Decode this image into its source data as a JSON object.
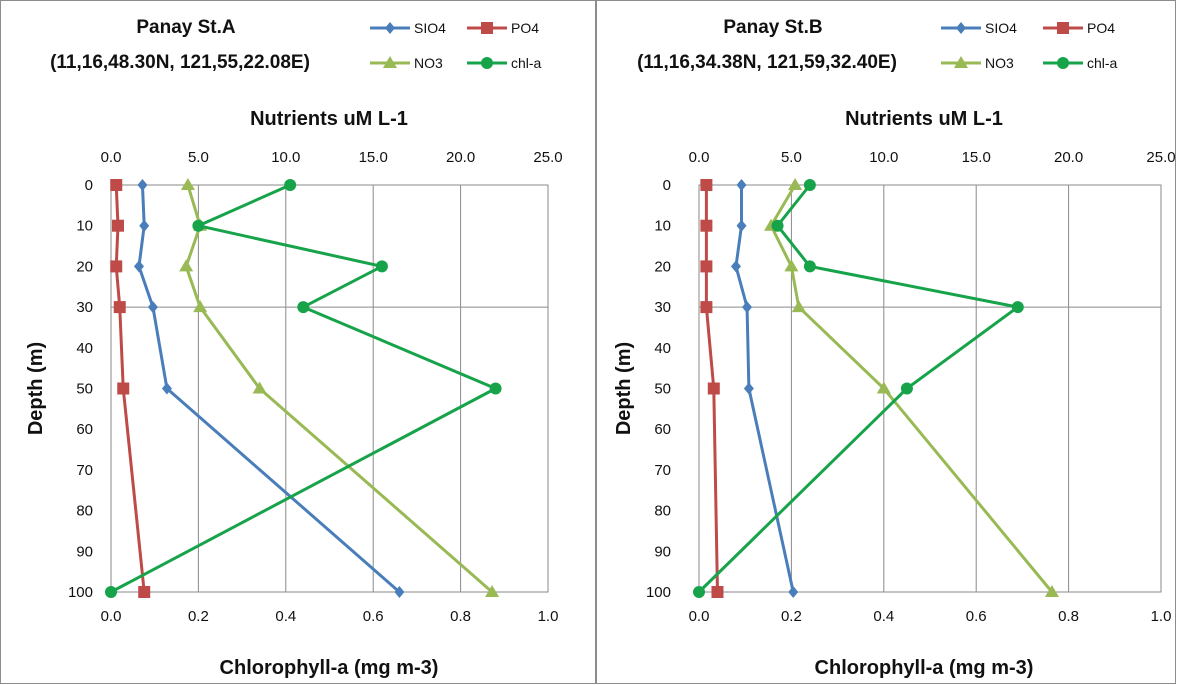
{
  "series_colors": {
    "SIO4": "#4a7ebb",
    "PO4": "#be4b48",
    "NO3": "#98b954",
    "chl-a": "#17a34a"
  },
  "chart_data": [
    {
      "type": "line",
      "title": "Panay St.A",
      "subtitle": "(11,16,48.30N, 121,55,22.08E)",
      "top_axis_label": "Nutrients  uM L-1",
      "bottom_axis_label": "Chlorophyll-a (mg m-3)",
      "ylabel": "Depth (m)",
      "top_ticks": [
        "0.0",
        "5.0",
        "10.0",
        "15.0",
        "20.0",
        "25.0"
      ],
      "bottom_ticks": [
        "0.0",
        "0.2",
        "0.4",
        "0.6",
        "0.8",
        "1.0"
      ],
      "y_ticks": [
        "0",
        "10",
        "20",
        "30",
        "40",
        "50",
        "60",
        "70",
        "80",
        "90",
        "100"
      ],
      "nutrient_xlim": [
        0,
        25
      ],
      "chl_xlim": [
        0,
        1
      ],
      "ylim": [
        0,
        100
      ],
      "y_inverted": true,
      "grid": "vertical lines at major ticks plus horizontal line at depth 30",
      "legend_position": "top-right",
      "depth": [
        0,
        10,
        20,
        30,
        50,
        100
      ],
      "series": [
        {
          "name": "SIO4",
          "axis": "top",
          "marker": "diamond",
          "values": [
            1.8,
            1.9,
            1.6,
            2.4,
            3.2,
            16.5
          ]
        },
        {
          "name": "PO4",
          "axis": "top",
          "marker": "square",
          "values": [
            0.3,
            0.4,
            0.3,
            0.5,
            0.7,
            1.9
          ]
        },
        {
          "name": "NO3",
          "axis": "top",
          "marker": "triangle",
          "values": [
            4.4,
            5.1,
            4.3,
            5.1,
            8.5,
            21.8
          ]
        },
        {
          "name": "chl-a",
          "axis": "bottom",
          "marker": "circle",
          "values": [
            0.41,
            0.2,
            0.62,
            0.44,
            0.88,
            0.0
          ]
        }
      ]
    },
    {
      "type": "line",
      "title": "Panay St.B",
      "subtitle": "(11,16,34.38N, 121,59,32.40E)",
      "top_axis_label": "Nutrients  uM L-1",
      "bottom_axis_label": "Chlorophyll-a (mg m-3)",
      "ylabel": "Depth (m)",
      "top_ticks": [
        "0.0",
        "5.0",
        "10.0",
        "15.0",
        "20.0",
        "25.0"
      ],
      "bottom_ticks": [
        "0.0",
        "0.2",
        "0.4",
        "0.6",
        "0.8",
        "1.0"
      ],
      "y_ticks": [
        "0",
        "10",
        "20",
        "30",
        "40",
        "50",
        "60",
        "70",
        "80",
        "90",
        "100"
      ],
      "nutrient_xlim": [
        0,
        25
      ],
      "chl_xlim": [
        0,
        1
      ],
      "ylim": [
        0,
        100
      ],
      "y_inverted": true,
      "grid": "vertical lines at major ticks plus horizontal line at depth 30",
      "legend_position": "top-right",
      "depth": [
        0,
        10,
        20,
        30,
        50,
        100
      ],
      "series": [
        {
          "name": "SIO4",
          "axis": "top",
          "marker": "diamond",
          "values": [
            2.3,
            2.3,
            2.0,
            2.6,
            2.7,
            5.1
          ]
        },
        {
          "name": "PO4",
          "axis": "top",
          "marker": "square",
          "values": [
            0.4,
            0.4,
            0.4,
            0.4,
            0.8,
            1.0
          ]
        },
        {
          "name": "NO3",
          "axis": "top",
          "marker": "triangle",
          "values": [
            5.2,
            3.9,
            5.0,
            5.4,
            10.0,
            19.1
          ]
        },
        {
          "name": "chl-a",
          "axis": "bottom",
          "marker": "circle",
          "values": [
            0.24,
            0.17,
            0.24,
            0.69,
            0.45,
            0.0
          ]
        }
      ]
    }
  ]
}
